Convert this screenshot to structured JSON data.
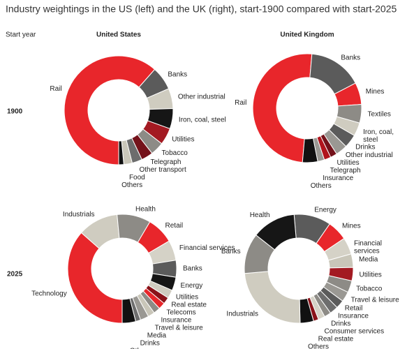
{
  "title": "Industry weightings in the US (left) and the UK (right), start-1900 compared with start-2025",
  "start_year_label": "Start year",
  "column_titles": [
    "United States",
    "United Kingdom"
  ],
  "row_titles": [
    "1900",
    "2025"
  ],
  "chart_data": [
    {
      "type": "donut",
      "categories": [
        "Rail",
        "Banks",
        "Other industrial",
        "Iron, coal, steel",
        "Utilities",
        "Tobacco",
        "Telegraph",
        "Other transport",
        "Food",
        "Others"
      ],
      "values": [
        61.5,
        7,
        6,
        6,
        5,
        4,
        3.5,
        3,
        2.5,
        1.5
      ],
      "colors": [
        "#e8262b",
        "#5b5b5b",
        "#cfccc0",
        "#161616",
        "#a31a22",
        "#8d8b86",
        "#74121a",
        "#6d6d6d",
        "#c9c6b9",
        "#111111"
      ]
    },
    {
      "type": "donut",
      "categories": [
        "Rail",
        "Banks",
        "Mines",
        "Textiles",
        "Iron, coal, steel",
        "Drinks",
        "Other industrial",
        "Utilities",
        "Telegraph",
        "Insurance",
        "Others"
      ],
      "values": [
        50,
        16,
        6.5,
        5.5,
        4,
        4,
        3.5,
        2,
        2,
        2,
        4.5
      ],
      "colors": [
        "#e8262b",
        "#5b5b5b",
        "#e8262b",
        "#8d8b86",
        "#cfccc0",
        "#5b5b5b",
        "#9a9893",
        "#74121a",
        "#b0141c",
        "#9a9893",
        "#111111"
      ]
    },
    {
      "type": "donut",
      "categories": [
        "Technology",
        "Industrials",
        "Health",
        "Retail",
        "Financial services",
        "Banks",
        "Energy",
        "Utilities",
        "Real estate",
        "Telecoms",
        "Insurance",
        "Travel & leisure",
        "Media",
        "Drinks",
        "Others"
      ],
      "values": [
        36.5,
        12,
        10,
        8,
        6,
        5,
        4,
        2.5,
        2,
        2,
        2,
        2,
        2.5,
        1.5,
        4
      ],
      "colors": [
        "#e8262b",
        "#cfccc0",
        "#8d8b86",
        "#e8262b",
        "#d5d2c7",
        "#5b5b5b",
        "#161616",
        "#cfccc0",
        "#8a1219",
        "#e8262b",
        "#8d8b86",
        "#c9c6b9",
        "#9a9893",
        "#6d6d6d",
        "#111111"
      ]
    },
    {
      "type": "donut",
      "categories": [
        "Energy",
        "Mines",
        "Financial services",
        "Media",
        "Utilities",
        "Tobacco",
        "Travel & leisure",
        "Retail",
        "Insurance",
        "Drinks",
        "Consumer services",
        "Real estate",
        "Others",
        "Industrials",
        "Banks",
        "Health"
      ],
      "values": [
        11,
        6,
        5,
        4,
        4,
        3.5,
        3,
        2.5,
        2.5,
        2,
        2,
        1.5,
        4,
        24,
        12,
        13
      ],
      "colors": [
        "#5b5b5b",
        "#e8262b",
        "#d5d2c7",
        "#c9c6b9",
        "#a31a22",
        "#8d8b86",
        "#9a9893",
        "#5b5b5b",
        "#6d6d6d",
        "#8d8b86",
        "#d5d2c7",
        "#8a1219",
        "#111111",
        "#cfccc0",
        "#8d8b86",
        "#161616"
      ]
    }
  ]
}
